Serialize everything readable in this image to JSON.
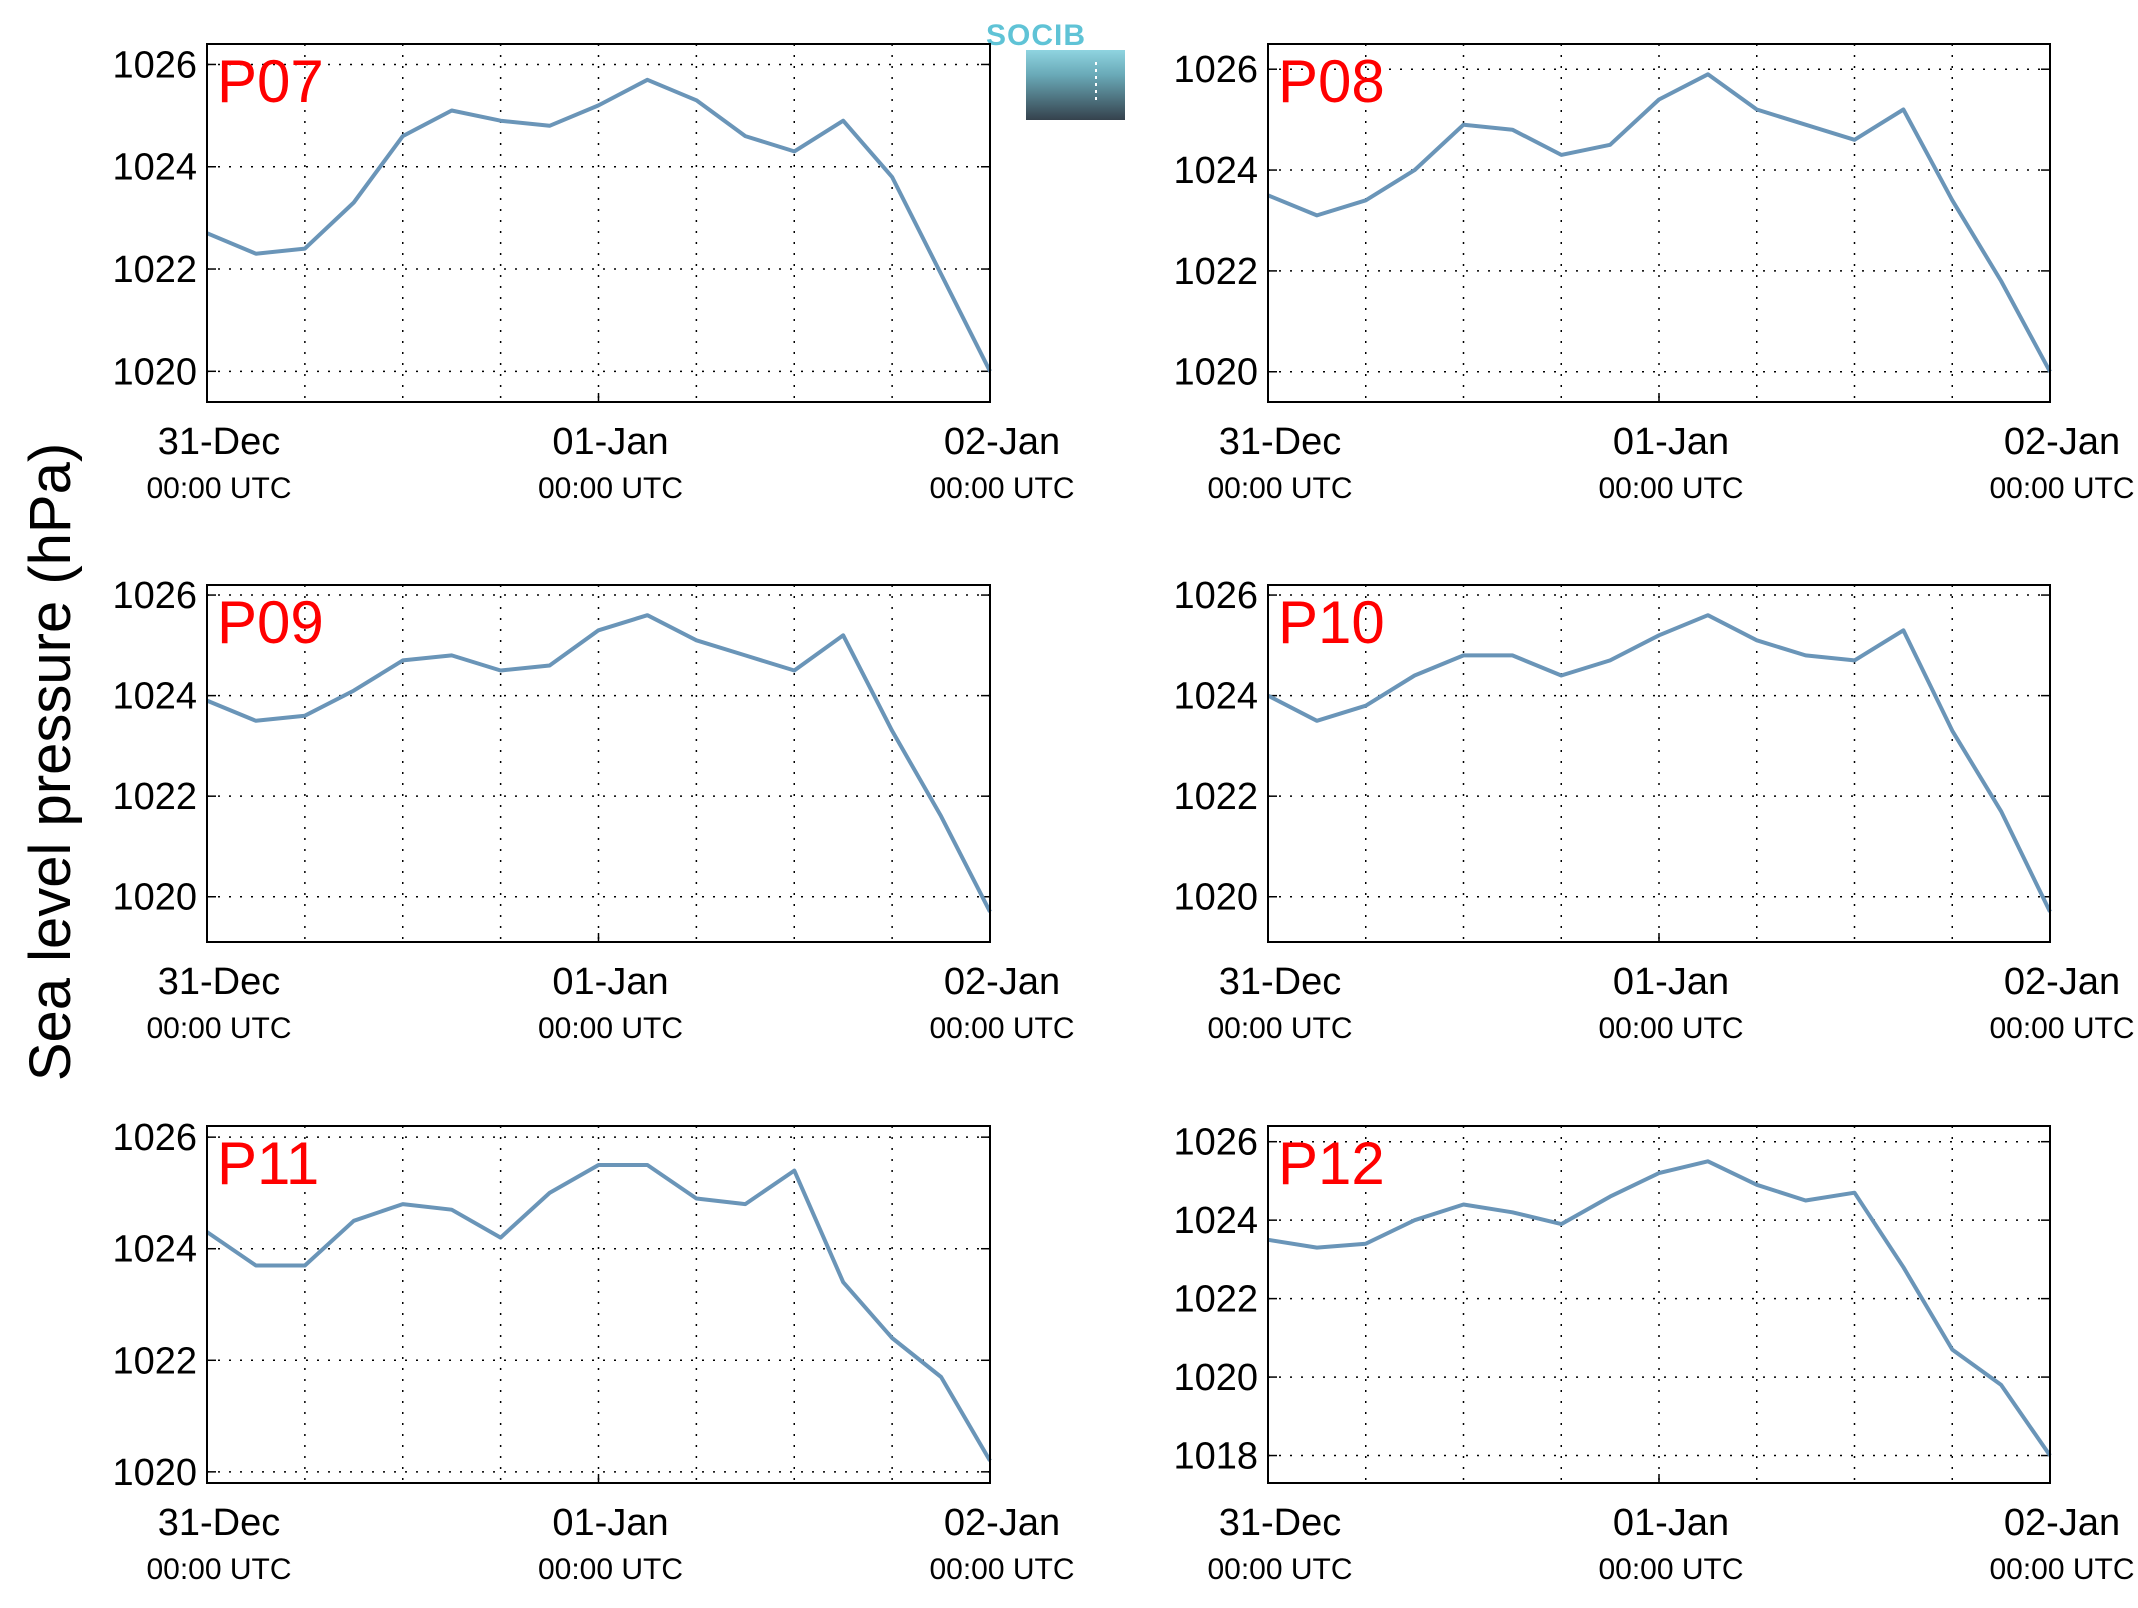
{
  "figure": {
    "ylabel": "Sea level pressure (hPa)",
    "logo_text": "SOCIB",
    "line_color": "#6a95b8",
    "label_color": "#ff0000"
  },
  "chart_data": [
    {
      "type": "line",
      "title": "P07",
      "x": [
        "31-Dec 00:00",
        "31-Dec 03:00",
        "31-Dec 06:00",
        "31-Dec 09:00",
        "31-Dec 12:00",
        "31-Dec 15:00",
        "31-Dec 18:00",
        "31-Dec 21:00",
        "01-Jan 00:00",
        "01-Jan 03:00",
        "01-Jan 06:00",
        "01-Jan 09:00",
        "01-Jan 12:00",
        "01-Jan 15:00",
        "01-Jan 18:00",
        "01-Jan 21:00",
        "02-Jan 00:00"
      ],
      "values": [
        1022.7,
        1022.3,
        1022.4,
        1023.3,
        1024.6,
        1025.1,
        1024.9,
        1024.8,
        1025.2,
        1025.7,
        1025.3,
        1024.6,
        1024.3,
        1024.9,
        1023.8,
        1021.9,
        1020.0
      ],
      "xticks": [
        {
          "top": "31-Dec",
          "bottom": "00:00 UTC"
        },
        {
          "top": "01-Jan",
          "bottom": "00:00 UTC"
        },
        {
          "top": "02-Jan",
          "bottom": "00:00 UTC"
        }
      ],
      "yticks": [
        1020,
        1022,
        1024,
        1026
      ],
      "ylim": [
        1019.4,
        1026.4
      ],
      "grid": true
    },
    {
      "type": "line",
      "title": "P08",
      "x": [
        "31-Dec 00:00",
        "31-Dec 03:00",
        "31-Dec 06:00",
        "31-Dec 09:00",
        "31-Dec 12:00",
        "31-Dec 15:00",
        "31-Dec 18:00",
        "31-Dec 21:00",
        "01-Jan 00:00",
        "01-Jan 03:00",
        "01-Jan 06:00",
        "01-Jan 09:00",
        "01-Jan 12:00",
        "01-Jan 15:00",
        "01-Jan 18:00",
        "01-Jan 21:00",
        "02-Jan 00:00"
      ],
      "values": [
        1023.5,
        1023.1,
        1023.4,
        1024.0,
        1024.9,
        1024.8,
        1024.3,
        1024.5,
        1025.4,
        1025.9,
        1025.2,
        1024.9,
        1024.6,
        1025.2,
        1023.4,
        1021.8,
        1020.0
      ],
      "xticks": [
        {
          "top": "31-Dec",
          "bottom": "00:00 UTC"
        },
        {
          "top": "01-Jan",
          "bottom": "00:00 UTC"
        },
        {
          "top": "02-Jan",
          "bottom": "00:00 UTC"
        }
      ],
      "yticks": [
        1020,
        1022,
        1024,
        1026
      ],
      "ylim": [
        1019.4,
        1026.5
      ],
      "grid": true
    },
    {
      "type": "line",
      "title": "P09",
      "x": [
        "31-Dec 00:00",
        "31-Dec 03:00",
        "31-Dec 06:00",
        "31-Dec 09:00",
        "31-Dec 12:00",
        "31-Dec 15:00",
        "31-Dec 18:00",
        "31-Dec 21:00",
        "01-Jan 00:00",
        "01-Jan 03:00",
        "01-Jan 06:00",
        "01-Jan 09:00",
        "01-Jan 12:00",
        "01-Jan 15:00",
        "01-Jan 18:00",
        "01-Jan 21:00",
        "02-Jan 00:00"
      ],
      "values": [
        1023.9,
        1023.5,
        1023.6,
        1024.1,
        1024.7,
        1024.8,
        1024.5,
        1024.6,
        1025.3,
        1025.6,
        1025.1,
        1024.8,
        1024.5,
        1025.2,
        1023.3,
        1021.6,
        1019.7
      ],
      "xticks": [
        {
          "top": "31-Dec",
          "bottom": "00:00 UTC"
        },
        {
          "top": "01-Jan",
          "bottom": "00:00 UTC"
        },
        {
          "top": "02-Jan",
          "bottom": "00:00 UTC"
        }
      ],
      "yticks": [
        1020,
        1022,
        1024,
        1026
      ],
      "ylim": [
        1019.1,
        1026.2
      ],
      "grid": true
    },
    {
      "type": "line",
      "title": "P10",
      "x": [
        "31-Dec 00:00",
        "31-Dec 03:00",
        "31-Dec 06:00",
        "31-Dec 09:00",
        "31-Dec 12:00",
        "31-Dec 15:00",
        "31-Dec 18:00",
        "31-Dec 21:00",
        "01-Jan 00:00",
        "01-Jan 03:00",
        "01-Jan 06:00",
        "01-Jan 09:00",
        "01-Jan 12:00",
        "01-Jan 15:00",
        "01-Jan 18:00",
        "01-Jan 21:00",
        "02-Jan 00:00"
      ],
      "values": [
        1024.0,
        1023.5,
        1023.8,
        1024.4,
        1024.8,
        1024.8,
        1024.4,
        1024.7,
        1025.2,
        1025.6,
        1025.1,
        1024.8,
        1024.7,
        1025.3,
        1023.3,
        1021.7,
        1019.7
      ],
      "xticks": [
        {
          "top": "31-Dec",
          "bottom": "00:00 UTC"
        },
        {
          "top": "01-Jan",
          "bottom": "00:00 UTC"
        },
        {
          "top": "02-Jan",
          "bottom": "00:00 UTC"
        }
      ],
      "yticks": [
        1020,
        1022,
        1024,
        1026
      ],
      "ylim": [
        1019.1,
        1026.2
      ],
      "grid": true
    },
    {
      "type": "line",
      "title": "P11",
      "x": [
        "31-Dec 00:00",
        "31-Dec 03:00",
        "31-Dec 06:00",
        "31-Dec 09:00",
        "31-Dec 12:00",
        "31-Dec 15:00",
        "31-Dec 18:00",
        "31-Dec 21:00",
        "01-Jan 00:00",
        "01-Jan 03:00",
        "01-Jan 06:00",
        "01-Jan 09:00",
        "01-Jan 12:00",
        "01-Jan 15:00",
        "01-Jan 18:00",
        "01-Jan 21:00",
        "02-Jan 00:00"
      ],
      "values": [
        1024.3,
        1023.7,
        1023.7,
        1024.5,
        1024.8,
        1024.7,
        1024.2,
        1025.0,
        1025.5,
        1025.5,
        1024.9,
        1024.8,
        1025.4,
        1023.4,
        1022.4,
        1021.7,
        1020.2
      ],
      "xticks": [
        {
          "top": "31-Dec",
          "bottom": "00:00 UTC"
        },
        {
          "top": "01-Jan",
          "bottom": "00:00 UTC"
        },
        {
          "top": "02-Jan",
          "bottom": "00:00 UTC"
        }
      ],
      "yticks": [
        1020,
        1022,
        1024,
        1026
      ],
      "ylim": [
        1019.8,
        1026.2
      ],
      "grid": true
    },
    {
      "type": "line",
      "title": "P12",
      "x": [
        "31-Dec 00:00",
        "31-Dec 03:00",
        "31-Dec 06:00",
        "31-Dec 09:00",
        "31-Dec 12:00",
        "31-Dec 15:00",
        "31-Dec 18:00",
        "31-Dec 21:00",
        "01-Jan 00:00",
        "01-Jan 03:00",
        "01-Jan 06:00",
        "01-Jan 09:00",
        "01-Jan 12:00",
        "01-Jan 15:00",
        "01-Jan 18:00",
        "01-Jan 21:00",
        "02-Jan 00:00"
      ],
      "values": [
        1023.5,
        1023.3,
        1023.4,
        1024.0,
        1024.4,
        1024.2,
        1023.9,
        1024.6,
        1025.2,
        1025.5,
        1024.9,
        1024.5,
        1024.7,
        1022.8,
        1020.7,
        1019.8,
        1018.0
      ],
      "xticks": [
        {
          "top": "31-Dec",
          "bottom": "00:00 UTC"
        },
        {
          "top": "01-Jan",
          "bottom": "00:00 UTC"
        },
        {
          "top": "02-Jan",
          "bottom": "00:00 UTC"
        }
      ],
      "yticks": [
        1018,
        1020,
        1022,
        1024,
        1026
      ],
      "ylim": [
        1017.3,
        1026.4
      ],
      "grid": true
    }
  ]
}
